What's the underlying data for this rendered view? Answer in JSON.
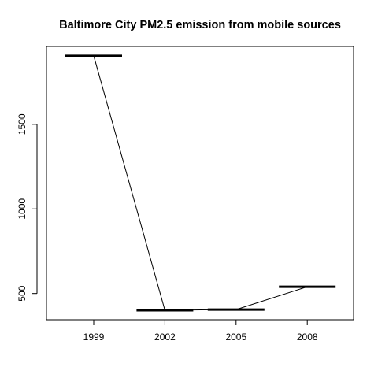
{
  "chart_data": {
    "type": "line",
    "title": "Baltimore City PM2.5 emission from mobile sources",
    "xlabel": "",
    "ylabel": "",
    "categories": [
      "1999",
      "2002",
      "2005",
      "2008"
    ],
    "values": [
      1905,
      401,
      405,
      540
    ],
    "yticks": [
      500,
      1000,
      1500
    ],
    "ylim": [
      345,
      1960
    ],
    "grid": false,
    "legend": "none",
    "series_style": "median bars of a boxplot joined by a line",
    "colors": {
      "line": "#000000",
      "axes": "#000000",
      "background": "#ffffff"
    }
  }
}
